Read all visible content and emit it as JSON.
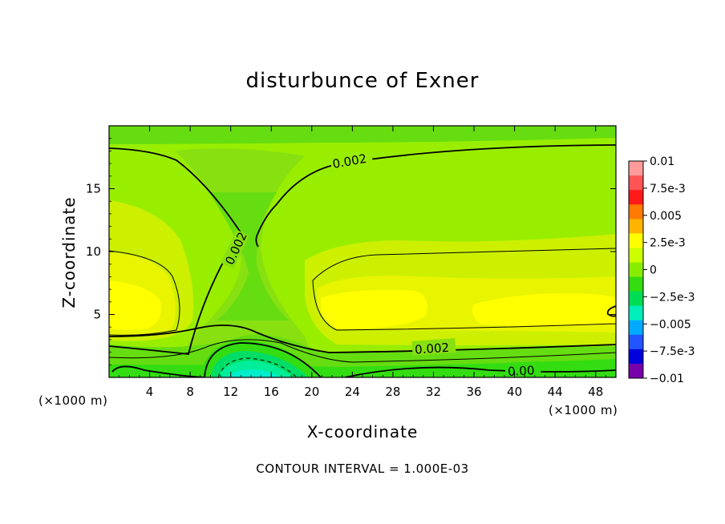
{
  "chart_data": {
    "type": "contour",
    "title": "disturbunce of Exner",
    "xlabel": "X-coordinate",
    "ylabel": "Z-coordinate",
    "x_unit": "(×1000 m)",
    "footer": "CONTOUR INTERVAL = 1.000E-03",
    "xlim": [
      0,
      50
    ],
    "ylim": [
      0,
      20
    ],
    "x_ticks": [
      4,
      8,
      12,
      16,
      20,
      24,
      28,
      32,
      36,
      40,
      44,
      48
    ],
    "y_ticks": [
      5,
      10,
      15
    ],
    "contour_interval": 0.001,
    "contour_labels": [
      "0.002",
      "0.002",
      "0.002",
      "0.00"
    ],
    "colorbar": {
      "min": -0.01,
      "max": 0.01,
      "tick_labels": [
        "0.01",
        "7.5e-3",
        "0.005",
        "2.5e-3",
        "0",
        "−2.5e-3",
        "−0.005",
        "−7.5e-3",
        "−0.01"
      ],
      "colors": [
        "#ff9b9b",
        "#ff5555",
        "#ff1a1a",
        "#ff7a00",
        "#ffb400",
        "#ffff00",
        "#ccff00",
        "#88ee00",
        "#33dd11",
        "#00dd55",
        "#00eebb",
        "#00aaff",
        "#2255ff",
        "#0000dd",
        "#7700aa"
      ]
    },
    "grid": false,
    "legend": "colorbar-right"
  }
}
